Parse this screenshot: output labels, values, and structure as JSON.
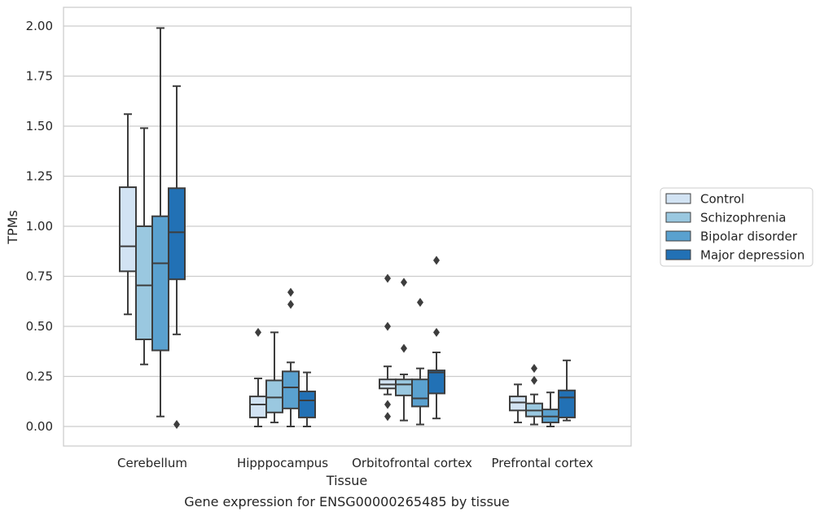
{
  "chart_data": {
    "type": "box",
    "title": "",
    "caption": "Gene expression for ENSG00000265485 by tissue",
    "xlabel": "Tissue",
    "ylabel": "TPMs",
    "ylim": [
      -0.1,
      2.09
    ],
    "yticks": [
      0.0,
      0.25,
      0.5,
      0.75,
      1.0,
      1.25,
      1.5,
      1.75,
      2.0
    ],
    "ytick_labels": [
      "0.00",
      "0.25",
      "0.50",
      "0.75",
      "1.00",
      "1.25",
      "1.50",
      "1.75",
      "2.00"
    ],
    "grid": true,
    "legend_position": "right",
    "categories": [
      "Cerebellum",
      "Hipppocampus",
      "Orbitofrontal cortex",
      "Prefrontal cortex"
    ],
    "series": [
      {
        "name": "Control",
        "color": "#d2e3f3",
        "boxes": [
          {
            "whislo": 0.56,
            "q1": 0.775,
            "med": 0.9,
            "q3": 1.195,
            "whishi": 1.56,
            "fliers": []
          },
          {
            "whislo": 0.0,
            "q1": 0.045,
            "med": 0.11,
            "q3": 0.15,
            "whishi": 0.24,
            "fliers": [
              0.47
            ]
          },
          {
            "whislo": 0.16,
            "q1": 0.19,
            "med": 0.21,
            "q3": 0.235,
            "whishi": 0.3,
            "fliers": [
              0.74,
              0.5,
              0.11,
              0.05
            ]
          },
          {
            "whislo": 0.02,
            "q1": 0.08,
            "med": 0.12,
            "q3": 0.15,
            "whishi": 0.21,
            "fliers": []
          }
        ]
      },
      {
        "name": "Schizophrenia",
        "color": "#9ac8e0",
        "boxes": [
          {
            "whislo": 0.31,
            "q1": 0.435,
            "med": 0.705,
            "q3": 1.0,
            "whishi": 1.49,
            "fliers": []
          },
          {
            "whislo": 0.02,
            "q1": 0.07,
            "med": 0.145,
            "q3": 0.23,
            "whishi": 0.47,
            "fliers": []
          },
          {
            "whislo": 0.03,
            "q1": 0.155,
            "med": 0.21,
            "q3": 0.235,
            "whishi": 0.26,
            "fliers": [
              0.72,
              0.39
            ]
          },
          {
            "whislo": 0.01,
            "q1": 0.05,
            "med": 0.08,
            "q3": 0.115,
            "whishi": 0.16,
            "fliers": [
              0.29,
              0.23
            ]
          }
        ]
      },
      {
        "name": "Bipolar disorder",
        "color": "#5aa1cf",
        "boxes": [
          {
            "whislo": 0.05,
            "q1": 0.38,
            "med": 0.815,
            "q3": 1.05,
            "whishi": 1.99,
            "fliers": []
          },
          {
            "whislo": 0.0,
            "q1": 0.09,
            "med": 0.195,
            "q3": 0.275,
            "whishi": 0.32,
            "fliers": [
              0.67,
              0.61
            ]
          },
          {
            "whislo": 0.01,
            "q1": 0.1,
            "med": 0.14,
            "q3": 0.235,
            "whishi": 0.29,
            "fliers": [
              0.62
            ]
          },
          {
            "whislo": 0.0,
            "q1": 0.02,
            "med": 0.05,
            "q3": 0.085,
            "whishi": 0.17,
            "fliers": []
          }
        ]
      },
      {
        "name": "Major depression",
        "color": "#2271b5",
        "boxes": [
          {
            "whislo": 0.46,
            "q1": 0.735,
            "med": 0.97,
            "q3": 1.19,
            "whishi": 1.7,
            "fliers": [
              0.01
            ]
          },
          {
            "whislo": 0.0,
            "q1": 0.045,
            "med": 0.13,
            "q3": 0.175,
            "whishi": 0.27,
            "fliers": []
          },
          {
            "whislo": 0.04,
            "q1": 0.165,
            "med": 0.27,
            "q3": 0.28,
            "whishi": 0.37,
            "fliers": [
              0.83,
              0.47
            ]
          },
          {
            "whislo": 0.03,
            "q1": 0.045,
            "med": 0.145,
            "q3": 0.18,
            "whishi": 0.33,
            "fliers": []
          }
        ]
      }
    ]
  }
}
